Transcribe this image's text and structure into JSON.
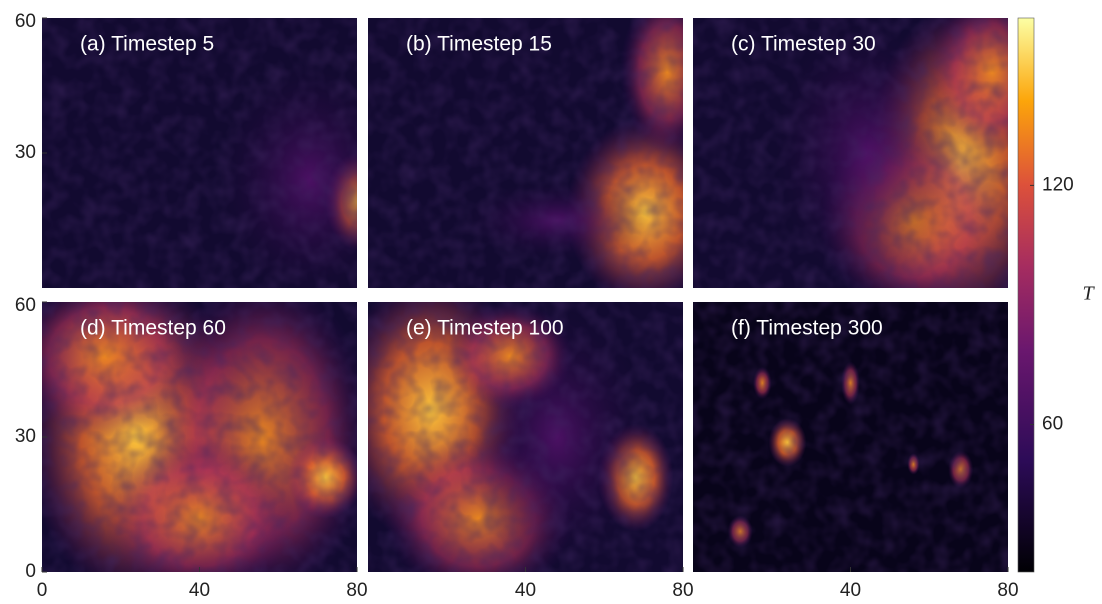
{
  "chart_data": {
    "type": "heatmap",
    "panels": [
      {
        "title": "(a) Timestep 5"
      },
      {
        "title": "(b) Timestep 15"
      },
      {
        "title": "(c) Timestep 30"
      },
      {
        "title": "(d) Timestep 60"
      },
      {
        "title": "(e) Timestep 100"
      },
      {
        "title": "(f) Timestep 300"
      }
    ],
    "xlim": [
      0,
      80
    ],
    "ylim": [
      0,
      60
    ],
    "xticks": [
      0,
      40,
      80
    ],
    "yticks": [
      0,
      30,
      60
    ],
    "colorbar": {
      "label": "T",
      "lim": [
        23,
        162
      ],
      "ticks": [
        60,
        120
      ]
    }
  }
}
